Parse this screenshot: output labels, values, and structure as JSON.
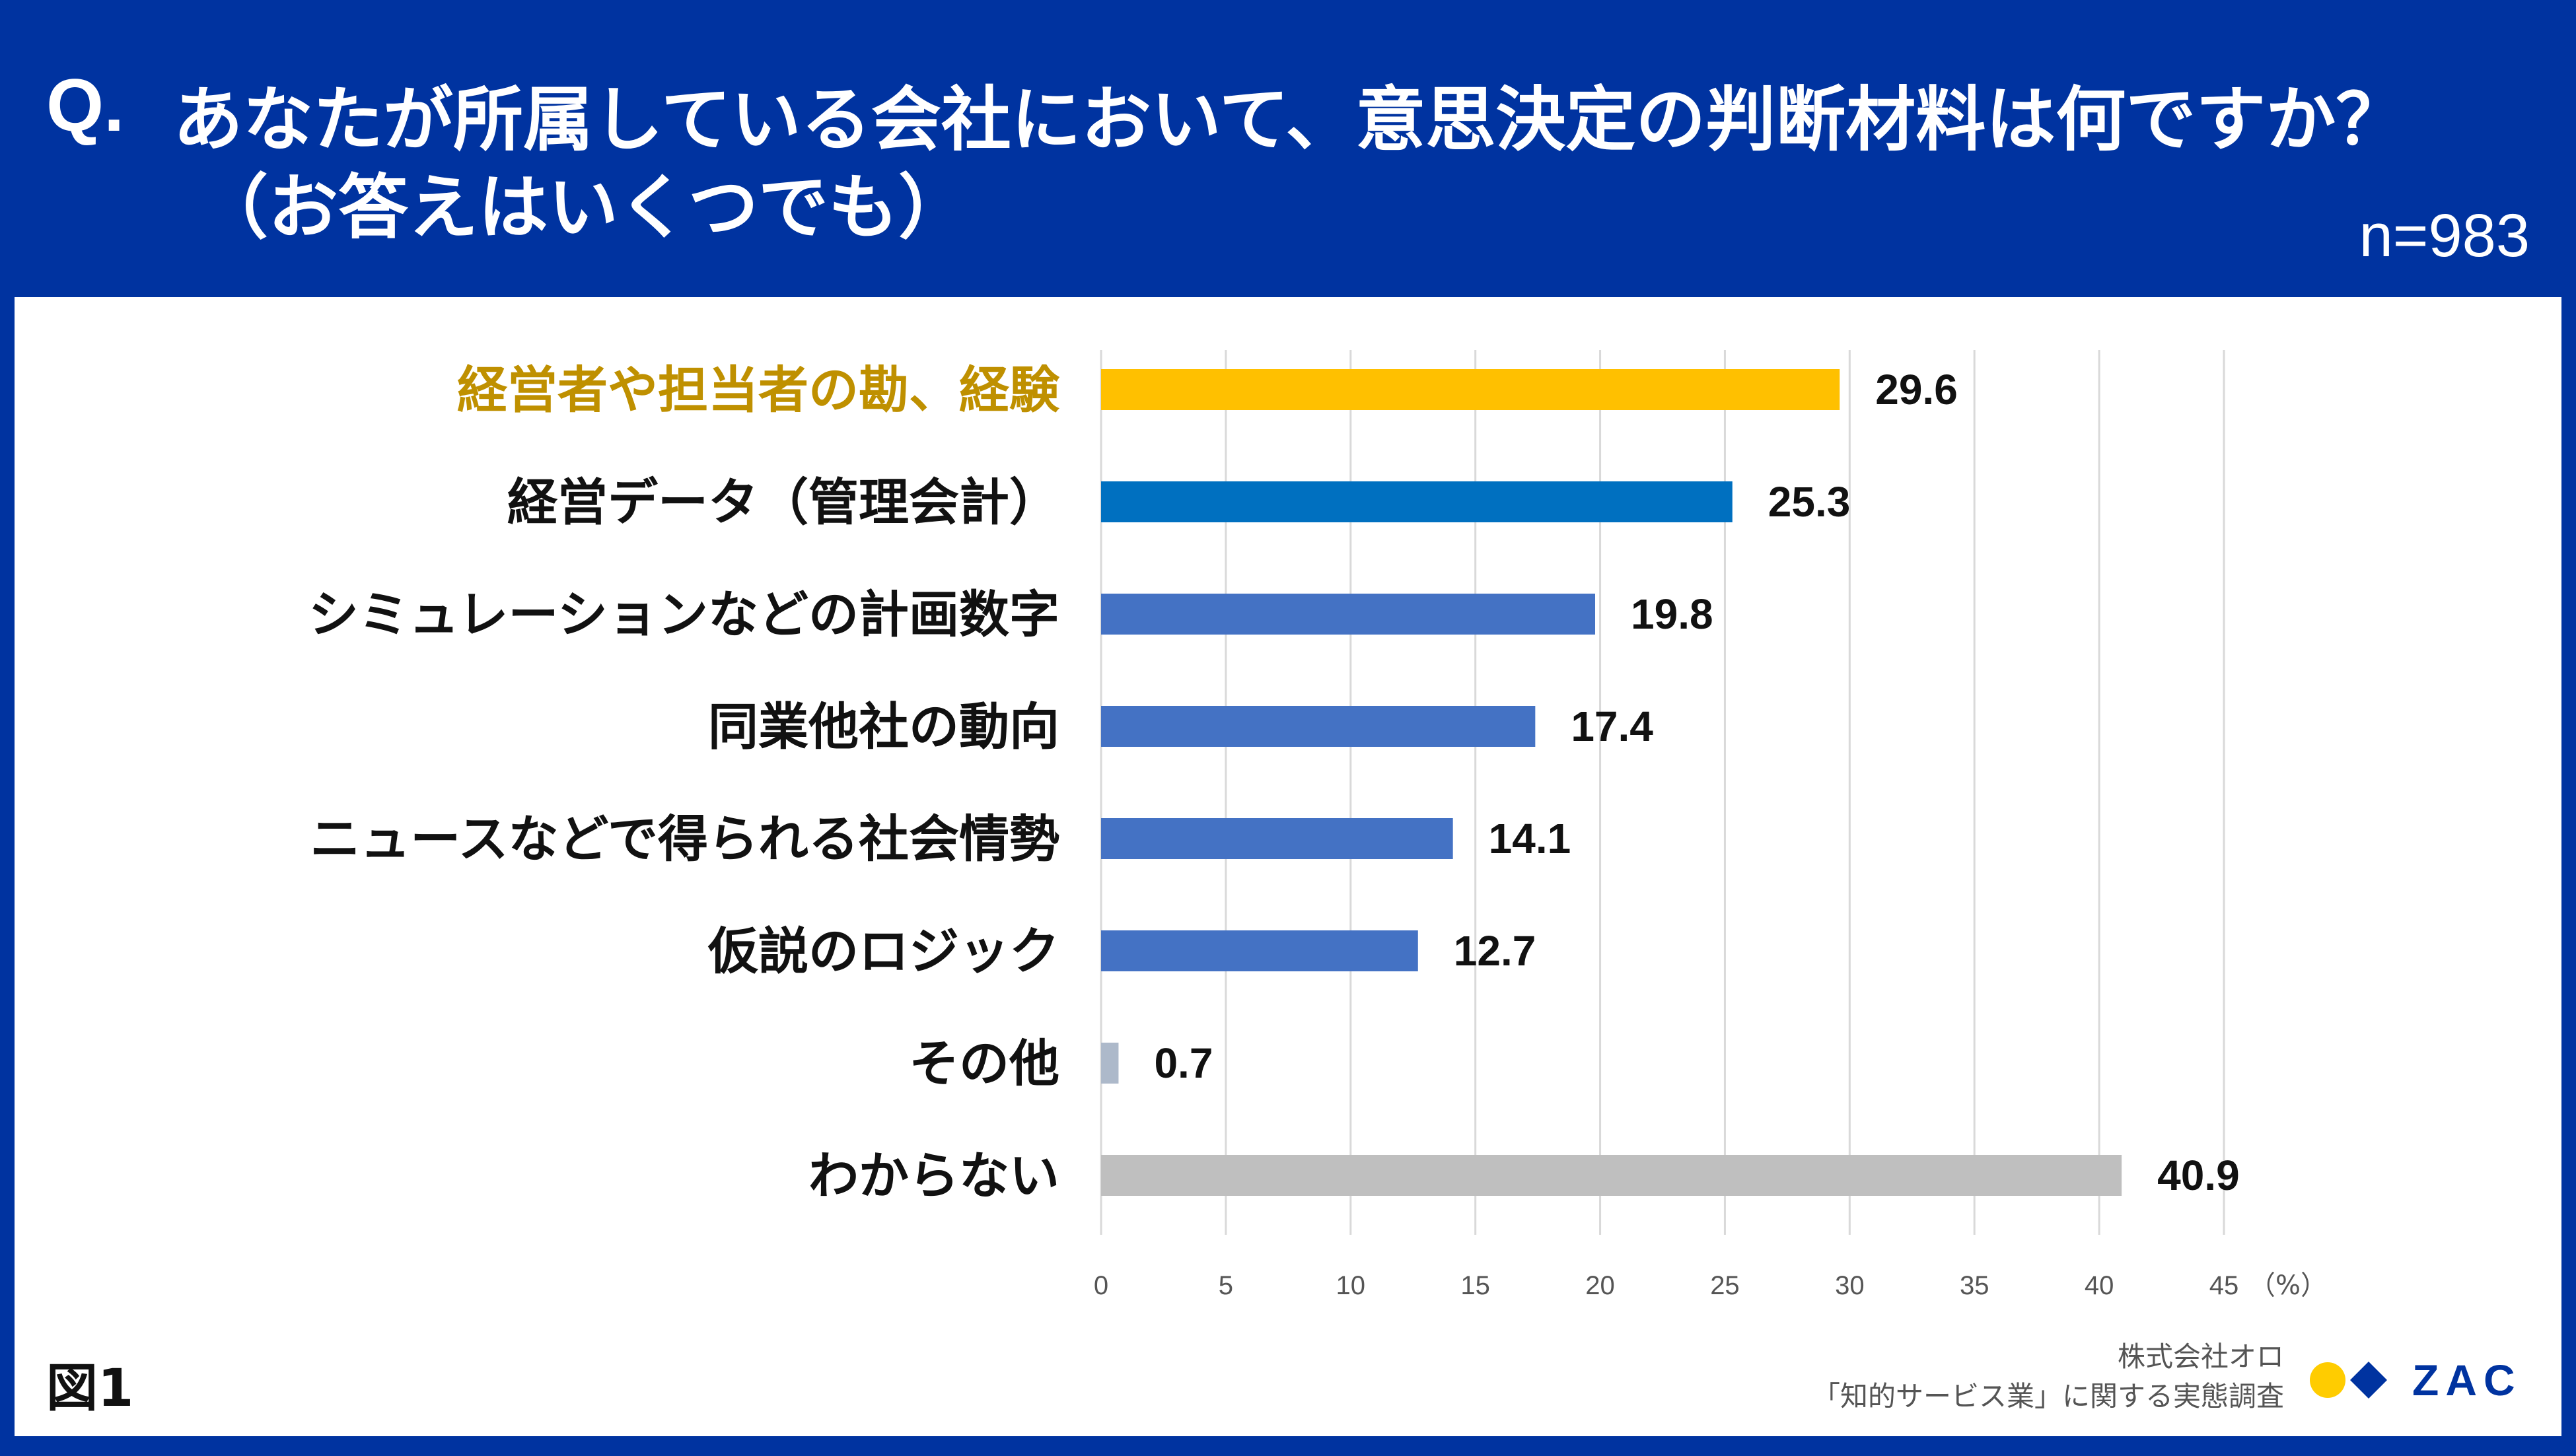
{
  "header": {
    "q_prefix": "Q.",
    "question_line1": "あなたが所属している会社において、意思決定の判断材料は何ですか？",
    "question_line2": "（お答えはいくつでも）",
    "sample_size": "n=983"
  },
  "chart_data": {
    "type": "bar",
    "orientation": "horizontal",
    "categories": [
      "経営者や担当者の勘、経験",
      "経営データ（管理会計）",
      "シミュレーションなどの計画数字",
      "同業他社の動向",
      "ニュースなどで得られる社会情勢",
      "仮説のロジック",
      "その他",
      "わからない"
    ],
    "values": [
      29.6,
      25.3,
      19.8,
      17.4,
      14.1,
      12.7,
      0.7,
      40.9
    ],
    "value_labels": [
      "29.6",
      "25.3",
      "19.8",
      "17.4",
      "14.1",
      "12.7",
      "0.7",
      "40.9"
    ],
    "bar_colors": [
      "#ffc000",
      "#0070c0",
      "#4472c4",
      "#4472c4",
      "#4472c4",
      "#4472c4",
      "#adb9ca",
      "#bfbfbf"
    ],
    "label_colors": [
      "#bf9000",
      "#111111",
      "#111111",
      "#111111",
      "#111111",
      "#111111",
      "#111111",
      "#111111"
    ],
    "xlim": [
      0,
      45
    ],
    "xticks": [
      0,
      5,
      10,
      15,
      20,
      25,
      30,
      35,
      40,
      45
    ],
    "x_unit": "（%）",
    "grid": true
  },
  "footer": {
    "figure_label": "図1",
    "source_company": "株式会社オロ",
    "source_survey": "「知的サービス業」に関する実態調査",
    "logo_text": "ZAC"
  },
  "colors": {
    "header_bg": "#0033a0",
    "logo_yellow": "#ffcc00",
    "logo_blue": "#0033a0"
  }
}
